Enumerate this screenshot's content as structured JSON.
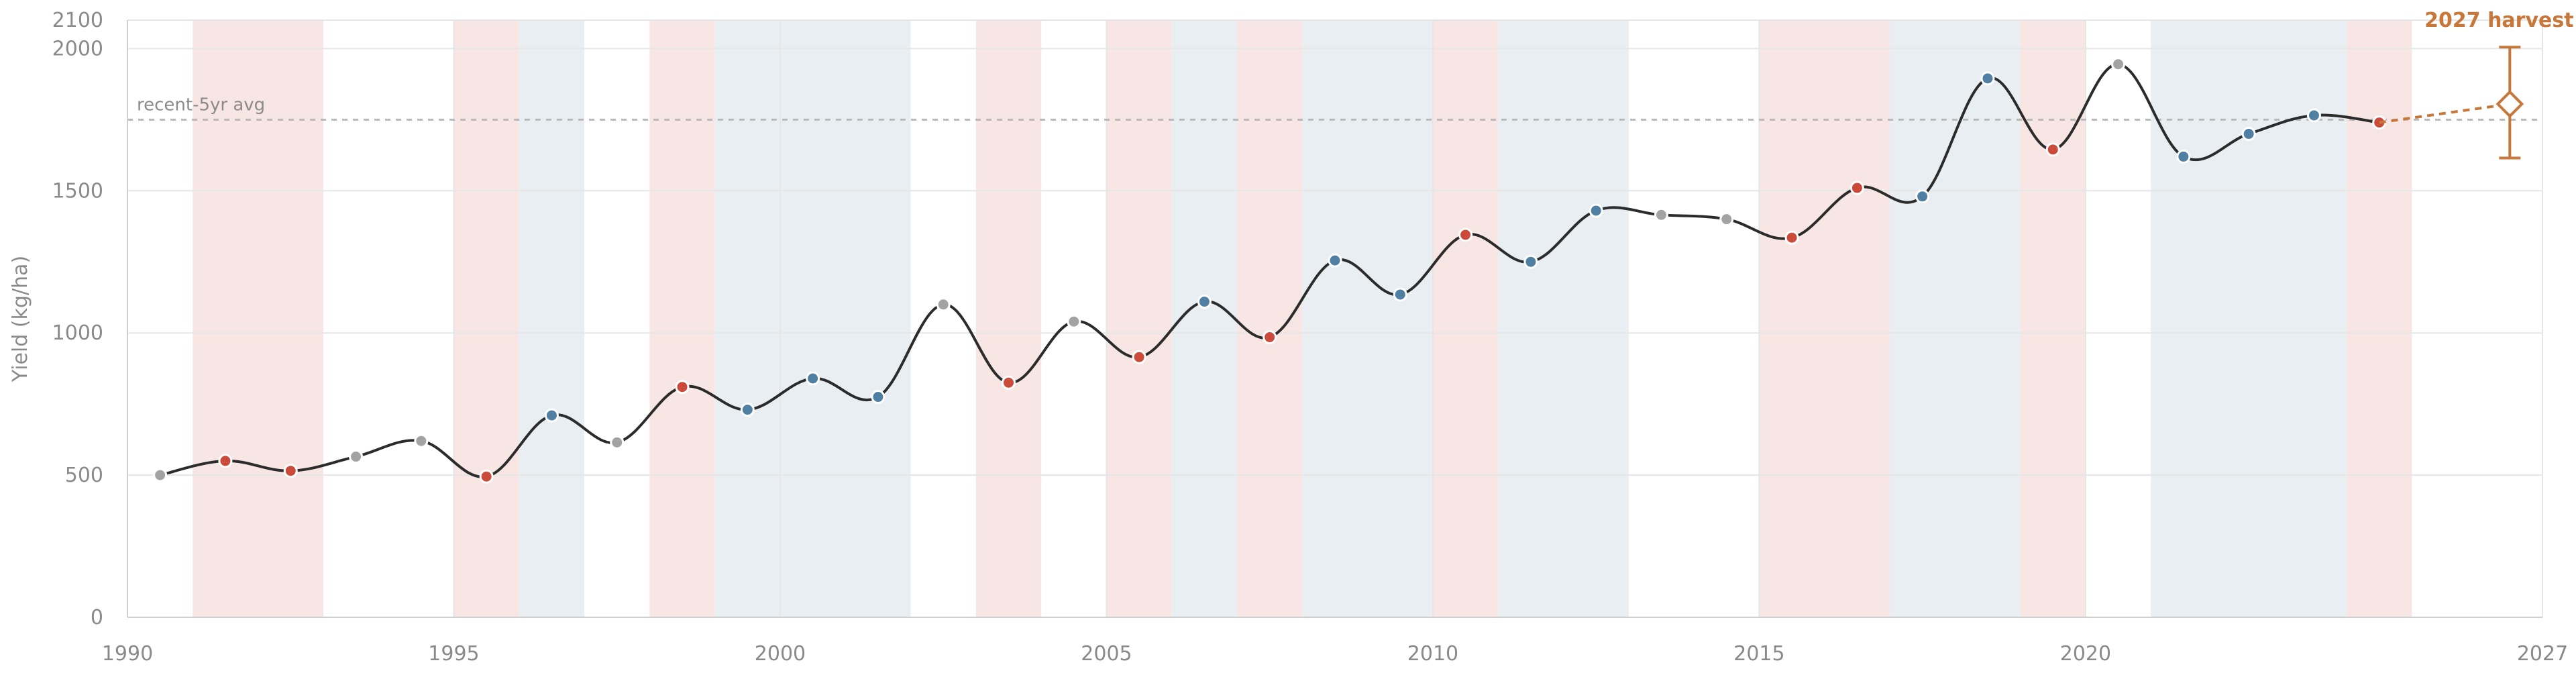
{
  "chart_data": {
    "type": "line",
    "title": "",
    "xlabel": "",
    "ylabel": "Yield (kg/ha)",
    "xlim": [
      1990,
      2027
    ],
    "ylim": [
      0,
      2100
    ],
    "x_ticks": [
      "1990",
      "1995",
      "2000",
      "2005",
      "2010",
      "2015",
      "2020",
      "2027"
    ],
    "y_ticks": [
      "0",
      "500",
      "1000",
      "1500",
      "2000",
      "2100"
    ],
    "grid": true,
    "series": [
      {
        "x": [
          1990.5,
          1991.5,
          1992.5,
          1993.5,
          1994.5,
          1995.5,
          1996.5,
          1997.5,
          1998.5,
          1999.5,
          2000.5,
          2001.5,
          2002.5,
          2003.5,
          2004.5,
          2005.5,
          2006.5,
          2007.5,
          2008.5,
          2009.5,
          2010.5,
          2011.5,
          2012.5,
          2013.5,
          2014.5,
          2015.5,
          2016.5,
          2017.5,
          2018.5,
          2019.5,
          2020.5,
          2021.5,
          2022.5,
          2023.5,
          2024.5
        ],
        "y": [
          500,
          550,
          515,
          565,
          620,
          495,
          710,
          615,
          810,
          730,
          840,
          775,
          1100,
          825,
          1040,
          915,
          1110,
          985,
          1255,
          1135,
          1345,
          1250,
          1430,
          1415,
          1400,
          1335,
          1510,
          1480,
          1895,
          1645,
          1945,
          1620,
          1700,
          1765,
          1740
        ],
        "point_class": [
          "neutral",
          "dry",
          "dry",
          "neutral",
          "neutral",
          "dry",
          "wet",
          "neutral",
          "dry",
          "wet",
          "wet",
          "wet",
          "neutral",
          "dry",
          "neutral",
          "dry",
          "wet",
          "dry",
          "wet",
          "wet",
          "dry",
          "wet",
          "wet",
          "neutral",
          "neutral",
          "dry",
          "dry",
          "wet",
          "wet",
          "dry",
          "neutral",
          "wet",
          "wet",
          "wet",
          "dry"
        ]
      }
    ],
    "shaded_bands": [
      {
        "from": 1991,
        "to": 1993,
        "kind": "dry"
      },
      {
        "from": 1995,
        "to": 1996,
        "kind": "dry"
      },
      {
        "from": 1996,
        "to": 1997,
        "kind": "wet"
      },
      {
        "from": 1998,
        "to": 1999,
        "kind": "dry"
      },
      {
        "from": 1999,
        "to": 2002,
        "kind": "wet"
      },
      {
        "from": 2003,
        "to": 2004,
        "kind": "dry"
      },
      {
        "from": 2005,
        "to": 2006,
        "kind": "dry"
      },
      {
        "from": 2006,
        "to": 2007,
        "kind": "wet"
      },
      {
        "from": 2007,
        "to": 2008,
        "kind": "dry"
      },
      {
        "from": 2008,
        "to": 2010,
        "kind": "wet"
      },
      {
        "from": 2010,
        "to": 2011,
        "kind": "dry"
      },
      {
        "from": 2011,
        "to": 2013,
        "kind": "wet"
      },
      {
        "from": 2015,
        "to": 2017,
        "kind": "dry"
      },
      {
        "from": 2017,
        "to": 2019,
        "kind": "wet"
      },
      {
        "from": 2019,
        "to": 2020,
        "kind": "dry"
      },
      {
        "from": 2021,
        "to": 2024,
        "kind": "wet"
      },
      {
        "from": 2024,
        "to": 2025,
        "kind": "dry"
      }
    ],
    "reference_line": {
      "label": "recent-5yr avg",
      "y": 1750
    },
    "forecast": {
      "label": "2027 harvest",
      "x": 2026.5,
      "y": 1805,
      "low": 1615,
      "high": 2005,
      "from_x": 2024.5,
      "from_y": 1740
    },
    "colors": {
      "line": "#2b2b2b",
      "dry": "#cc4a3a",
      "wet": "#4f7fa3",
      "neutral": "#a3a3a3",
      "dry_band": "#f7e6e3",
      "wet_band": "#e9eef2",
      "forecast": "#c8773a",
      "avg_line": "#b9b9b9",
      "grid": "#e6e6e6",
      "axis": "#cfcfcf"
    }
  }
}
